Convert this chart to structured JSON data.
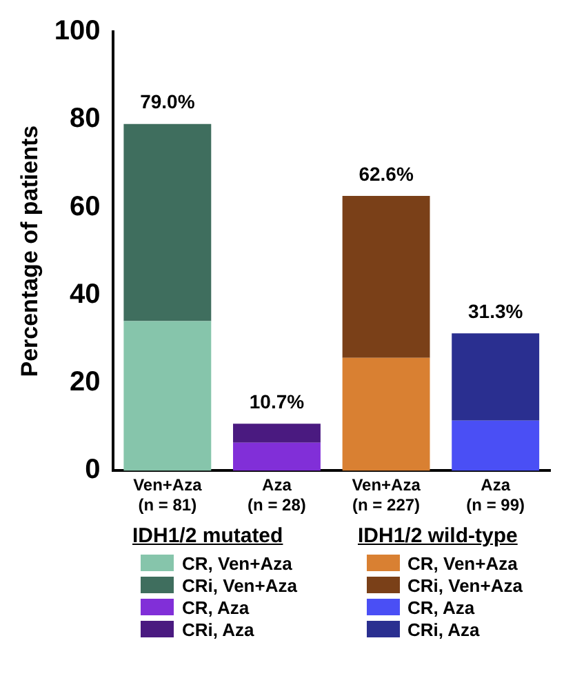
{
  "chart_data": {
    "type": "bar",
    "stacked": true,
    "ylabel": "Percentage of patients",
    "categories": [
      "Ven+Aza (n = 81)",
      "Aza (n = 28)",
      "Ven+Aza (n = 227)",
      "Aza (n = 99)"
    ],
    "series": [
      {
        "name": "CR, Ven+Aza",
        "color": "#86c5ab",
        "values": [
          34.1,
          null,
          null,
          null
        ]
      },
      {
        "name": "CRi, Ven+Aza",
        "color": "#3f6e5e",
        "values": [
          44.9,
          null,
          null,
          null
        ]
      },
      {
        "name": "CR, Aza",
        "color": "#812fd8",
        "values": [
          null,
          6.4,
          null,
          null
        ]
      },
      {
        "name": "CRi, Aza",
        "color": "#4a1a80",
        "values": [
          null,
          4.3,
          null,
          null
        ]
      },
      {
        "name": "CR, Ven+Aza",
        "color": "#d98032",
        "values": [
          null,
          null,
          25.7,
          null
        ]
      },
      {
        "name": "CRi, Ven+Aza",
        "color": "#7a4018",
        "values": [
          null,
          null,
          36.9,
          null
        ]
      },
      {
        "name": "CR, Aza",
        "color": "#4a4ff5",
        "values": [
          null,
          null,
          null,
          11.4
        ]
      },
      {
        "name": "CRi, Aza",
        "color": "#2a2f90",
        "values": [
          null,
          null,
          null,
          19.9
        ]
      }
    ],
    "totals": [
      "79.0%",
      "10.7%",
      "62.6%",
      "31.3%"
    ],
    "annotations": [
      "IDH1/2 mutated",
      "IDH1/2 wild-type"
    ],
    "ylim": [
      0,
      100
    ],
    "yticks": [
      0,
      20,
      40,
      60,
      80,
      100
    ],
    "grid": false,
    "legend": "bottom"
  }
}
